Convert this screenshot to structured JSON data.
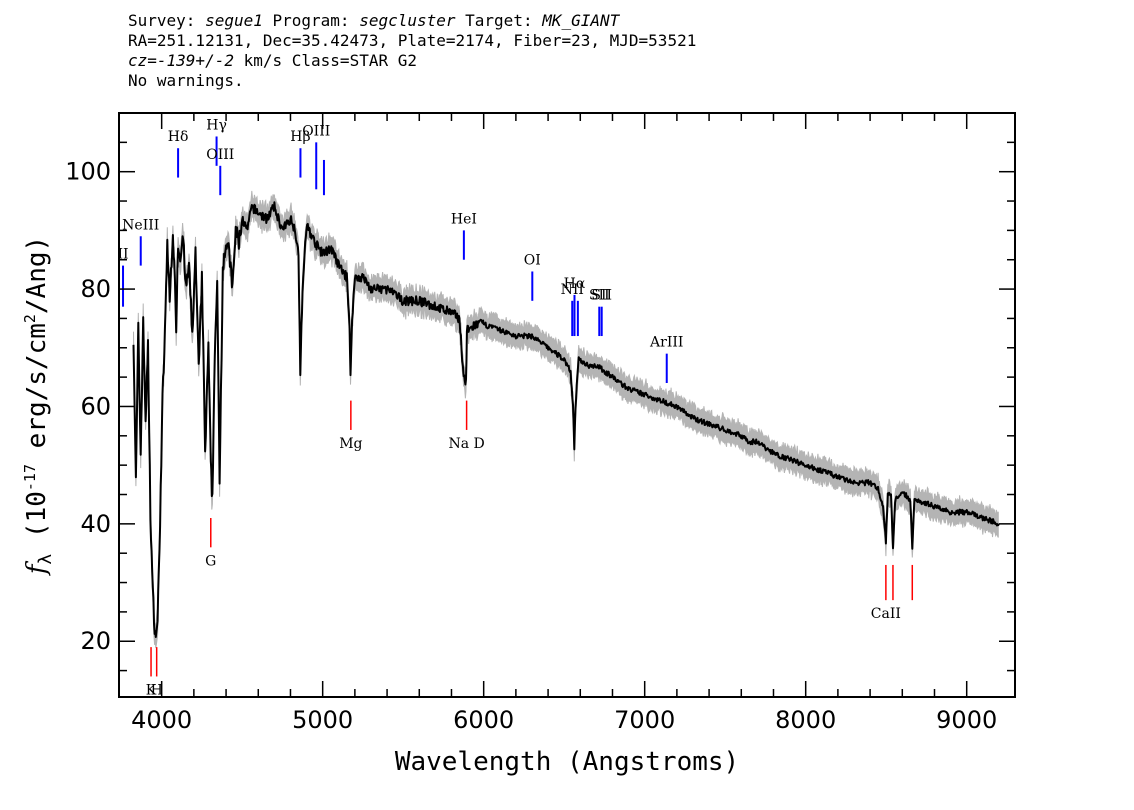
{
  "header": {
    "line1": [
      {
        "text": "Survey: ",
        "italic": false
      },
      {
        "text": "segue1",
        "italic": true
      },
      {
        "text": " Program: ",
        "italic": false
      },
      {
        "text": "segcluster",
        "italic": true
      },
      {
        "text": " Target: ",
        "italic": false
      },
      {
        "text": "MK_GIANT",
        "italic": true
      }
    ],
    "line2": "RA=251.12131, Dec=35.42473, Plate=2174, Fiber=23, MJD=53521",
    "line3": [
      {
        "text": "cz=-139+/-2",
        "italic": true
      },
      {
        "text": " km/s Class=STAR G2",
        "italic": false
      }
    ],
    "line4": "No warnings."
  },
  "colors": {
    "spectrum": "#000000",
    "error": "#b4b4b4",
    "emission": "#0000ff",
    "absorption": "#ff0000"
  },
  "chart_data": {
    "type": "line",
    "title": "",
    "xlabel": "Wavelength (Angstroms)",
    "ylabel": "f_λ (10^-17 erg/s/cm^2/Ang)",
    "xlim": [
      3735,
      9300
    ],
    "ylim": [
      10.5,
      110
    ],
    "x_ticks": [
      4000,
      5000,
      6000,
      7000,
      8000,
      9000
    ],
    "y_ticks": [
      20,
      40,
      60,
      80,
      100
    ],
    "grid": false,
    "series": [
      {
        "x": [
          3825,
          3840,
          3855,
          3870,
          3885,
          3900,
          3915,
          3930,
          3945,
          3960,
          3975,
          3990,
          4005,
          4020,
          4035,
          4050,
          4070,
          4090,
          4102,
          4115,
          4130,
          4150,
          4170,
          4190,
          4210,
          4230,
          4250,
          4270,
          4290,
          4305,
          4315,
          4330,
          4345,
          4360,
          4380,
          4400,
          4420,
          4440,
          4460,
          4480,
          4500,
          4530,
          4560,
          4600,
          4650,
          4700,
          4750,
          4800,
          4830,
          4850,
          4861,
          4875,
          4900,
          4950,
          5000,
          5050,
          5100,
          5150,
          5167,
          5173,
          5183,
          5200,
          5250,
          5300,
          5400,
          5500,
          5600,
          5700,
          5800,
          5850,
          5875,
          5890,
          5896,
          5910,
          5950,
          6000,
          6100,
          6200,
          6300,
          6400,
          6500,
          6540,
          6555,
          6563,
          6570,
          6590,
          6650,
          6700,
          6800,
          6900,
          7000,
          7100,
          7200,
          7300,
          7400,
          7500,
          7600,
          7650,
          7700,
          7800,
          7900,
          8000,
          8100,
          8200,
          8300,
          8400,
          8450,
          8480,
          8498,
          8510,
          8530,
          8542,
          8555,
          8580,
          8620,
          8650,
          8662,
          8675,
          8700,
          8800,
          8900,
          9000,
          9100,
          9200
        ],
        "y": [
          72,
          47,
          73,
          52,
          74,
          58,
          70,
          42,
          28,
          21,
          23,
          41,
          61,
          72,
          88,
          78,
          90,
          74,
          88,
          85,
          90,
          80,
          84,
          72,
          86,
          66,
          82,
          52,
          70,
          50,
          44,
          70,
          80,
          48,
          84,
          88,
          86,
          80,
          90,
          88,
          92,
          90,
          94,
          93,
          92,
          94,
          90,
          92,
          90,
          86,
          66,
          80,
          91,
          88,
          86,
          87,
          84,
          82,
          74,
          65,
          75,
          82,
          82,
          80,
          80,
          78,
          78,
          77,
          76,
          75,
          65,
          64,
          73,
          73,
          74,
          74,
          73,
          72,
          72,
          70,
          68,
          66,
          60,
          53,
          60,
          68,
          67,
          67,
          65,
          63,
          62,
          61,
          60,
          58,
          57,
          56,
          55,
          54,
          54,
          52,
          51,
          50,
          49,
          48,
          47,
          47,
          46,
          43,
          37,
          45,
          45,
          36,
          44,
          45,
          45,
          44,
          36,
          44,
          44,
          43,
          42,
          42,
          41,
          40
        ]
      }
    ],
    "line_markers": [
      {
        "label": "II",
        "x": 3760,
        "y": "77-84",
        "kind": "emission",
        "label_xy": "near"
      },
      {
        "label": "NeIII",
        "x": 3870,
        "y": "84-89",
        "kind": "emission"
      },
      {
        "label": "Hδ",
        "x": 4102,
        "y": "99-104",
        "kind": "emission"
      },
      {
        "label": "Hγ",
        "x": 4341,
        "y": "101-106",
        "kind": "emission"
      },
      {
        "label": "OIII",
        "x": 4364,
        "y": "96-101",
        "kind": "emission"
      },
      {
        "label": "Hβ",
        "x": 4862,
        "y": "99-104",
        "kind": "emission"
      },
      {
        "label": "OIII",
        "x": 4960,
        "y": "97-105",
        "kind": "emission"
      },
      {
        "label": "",
        "x": 5008,
        "y": "96-102",
        "kind": "emission"
      },
      {
        "label": "HeI",
        "x": 5877,
        "y": "85-90",
        "kind": "emission"
      },
      {
        "label": "OI",
        "x": 6302,
        "y": "78-83",
        "kind": "emission"
      },
      {
        "label": "NII",
        "x": 6550,
        "y": "72-78",
        "kind": "emission"
      },
      {
        "label": "Hα",
        "x": 6564,
        "y": "72-79",
        "kind": "emission"
      },
      {
        "label": "",
        "x": 6585,
        "y": "72-78",
        "kind": "emission"
      },
      {
        "label": "SII",
        "x": 6718,
        "y": "72-77",
        "kind": "emission"
      },
      {
        "label": "SII",
        "x": 6733,
        "y": "72-77",
        "kind": "emission"
      },
      {
        "label": "ArIII",
        "x": 7137,
        "y": "64-69",
        "kind": "emission"
      },
      {
        "label": "K",
        "x": 3934,
        "y": "14-19",
        "kind": "absorption"
      },
      {
        "label": "H",
        "x": 3969,
        "y": "14-19",
        "kind": "absorption"
      },
      {
        "label": "G",
        "x": 4305,
        "y": "36-41",
        "kind": "absorption"
      },
      {
        "label": "Mg",
        "x": 5175,
        "y": "56-61",
        "kind": "absorption"
      },
      {
        "label": "Na D",
        "x": 5894,
        "y": "56-61",
        "kind": "absorption"
      },
      {
        "label": "CaII",
        "x": 8498,
        "y": "27-33",
        "kind": "absorption"
      },
      {
        "label": "",
        "x": 8542,
        "y": "27-33",
        "kind": "absorption"
      },
      {
        "label": "",
        "x": 8662,
        "y": "27-33",
        "kind": "absorption"
      }
    ]
  }
}
